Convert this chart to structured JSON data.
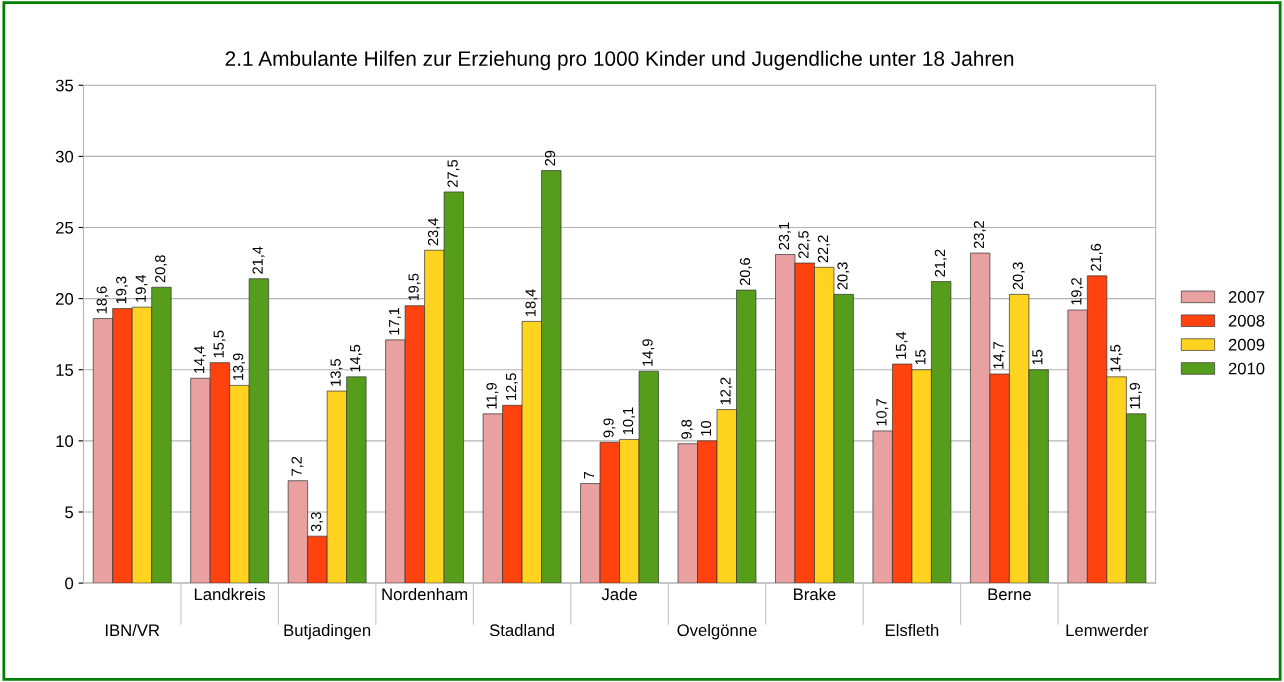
{
  "chart_data": {
    "type": "bar",
    "title": "2.1 Ambulante Hilfen zur Erziehung pro 1000 Kinder und Jugendliche unter 18 Jahren",
    "categories": [
      "IBN/VR",
      "Landkreis",
      "Butjadingen",
      "Nordenham",
      "Stadland",
      "Jade",
      "Ovelgönne",
      "Brake",
      "Elsfleth",
      "Berne",
      "Lemwerder"
    ],
    "series": [
      {
        "name": "2007",
        "color": "#e8a0a0",
        "values": [
          18.6,
          14.4,
          7.2,
          17.1,
          11.9,
          7,
          9.8,
          23.1,
          10.7,
          23.2,
          19.2
        ],
        "value_labels": [
          "18,6",
          "14,4",
          "7,2",
          "17,1",
          "11,9",
          "7",
          "9,8",
          "23,1",
          "10,7",
          "23,2",
          "19,2"
        ]
      },
      {
        "name": "2008",
        "color": "#ff420e",
        "values": [
          19.3,
          15.5,
          3.3,
          19.5,
          12.5,
          9.9,
          10,
          22.5,
          15.4,
          14.7,
          21.6
        ],
        "value_labels": [
          "19,3",
          "15,5",
          "3,3",
          "19,5",
          "12,5",
          "9,9",
          "10",
          "22,5",
          "15,4",
          "14,7",
          "21,6"
        ]
      },
      {
        "name": "2009",
        "color": "#ffd320",
        "values": [
          19.4,
          13.9,
          13.5,
          23.4,
          18.4,
          10.1,
          12.2,
          22.2,
          15,
          20.3,
          14.5
        ],
        "value_labels": [
          "19,4",
          "13,9",
          "13,5",
          "23,4",
          "18,4",
          "10,1",
          "12,2",
          "22,2",
          "15",
          "20,3",
          "14,5"
        ]
      },
      {
        "name": "2010",
        "color": "#579d1c",
        "values": [
          20.8,
          21.4,
          14.5,
          27.5,
          29,
          14.9,
          20.6,
          20.3,
          21.2,
          15,
          11.9
        ],
        "value_labels": [
          "20,8",
          "21,4",
          "14,5",
          "27,5",
          "29",
          "14,9",
          "20,6",
          "20,3",
          "21,2",
          "15",
          "11,9"
        ]
      }
    ],
    "ylim": [
      0,
      35
    ],
    "yticks": [
      0,
      5,
      10,
      15,
      20,
      25,
      30,
      35
    ],
    "grid": "y",
    "legend": "right"
  }
}
